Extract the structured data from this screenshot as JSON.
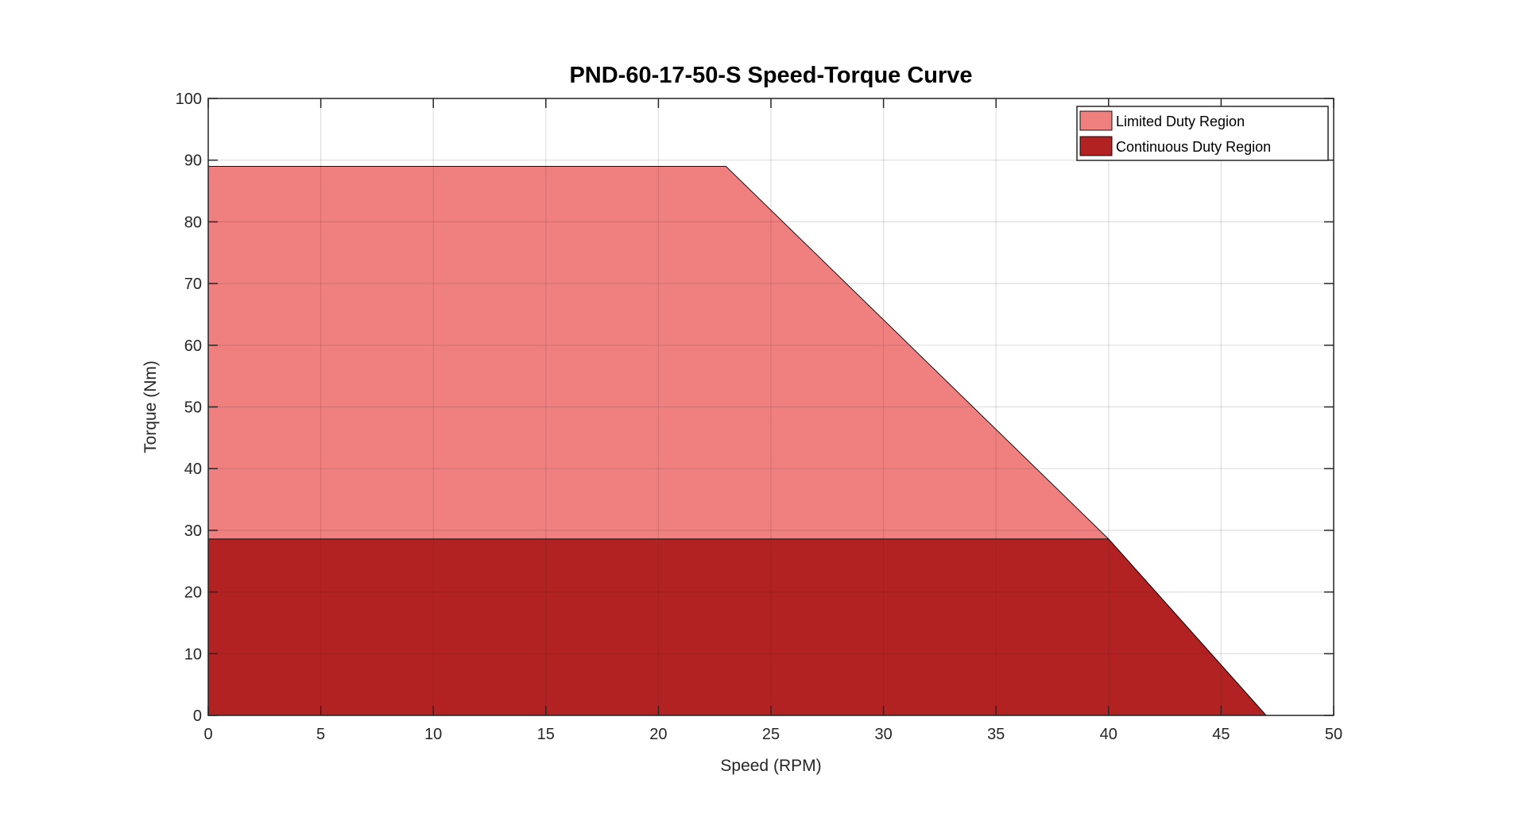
{
  "chart_data": {
    "type": "area",
    "title": "PND-60-17-50-S Speed-Torque Curve",
    "xlabel": "Speed (RPM)",
    "ylabel": "Torque (Nm)",
    "xlim": [
      0,
      50
    ],
    "ylim": [
      0,
      100
    ],
    "xticks": [
      0,
      5,
      10,
      15,
      20,
      25,
      30,
      35,
      40,
      45,
      50
    ],
    "yticks": [
      0,
      10,
      20,
      30,
      40,
      50,
      60,
      70,
      80,
      90,
      100
    ],
    "xtick_labels": [
      "0",
      "5",
      "10",
      "15",
      "20",
      "25",
      "30",
      "35",
      "40",
      "45",
      "50"
    ],
    "ytick_labels": [
      "0",
      "10",
      "20",
      "30",
      "40",
      "50",
      "60",
      "70",
      "80",
      "90",
      "100"
    ],
    "grid": true,
    "legend_position": "top-right",
    "series": [
      {
        "name": "Limited Duty Region",
        "color": "#f08080",
        "x": [
          0,
          23,
          40,
          47
        ],
        "y": [
          89,
          89,
          28.6,
          0
        ]
      },
      {
        "name": "Continuous Duty Region",
        "color": "#b22222",
        "x": [
          0,
          40,
          47
        ],
        "y": [
          28.6,
          28.6,
          0
        ]
      }
    ]
  }
}
